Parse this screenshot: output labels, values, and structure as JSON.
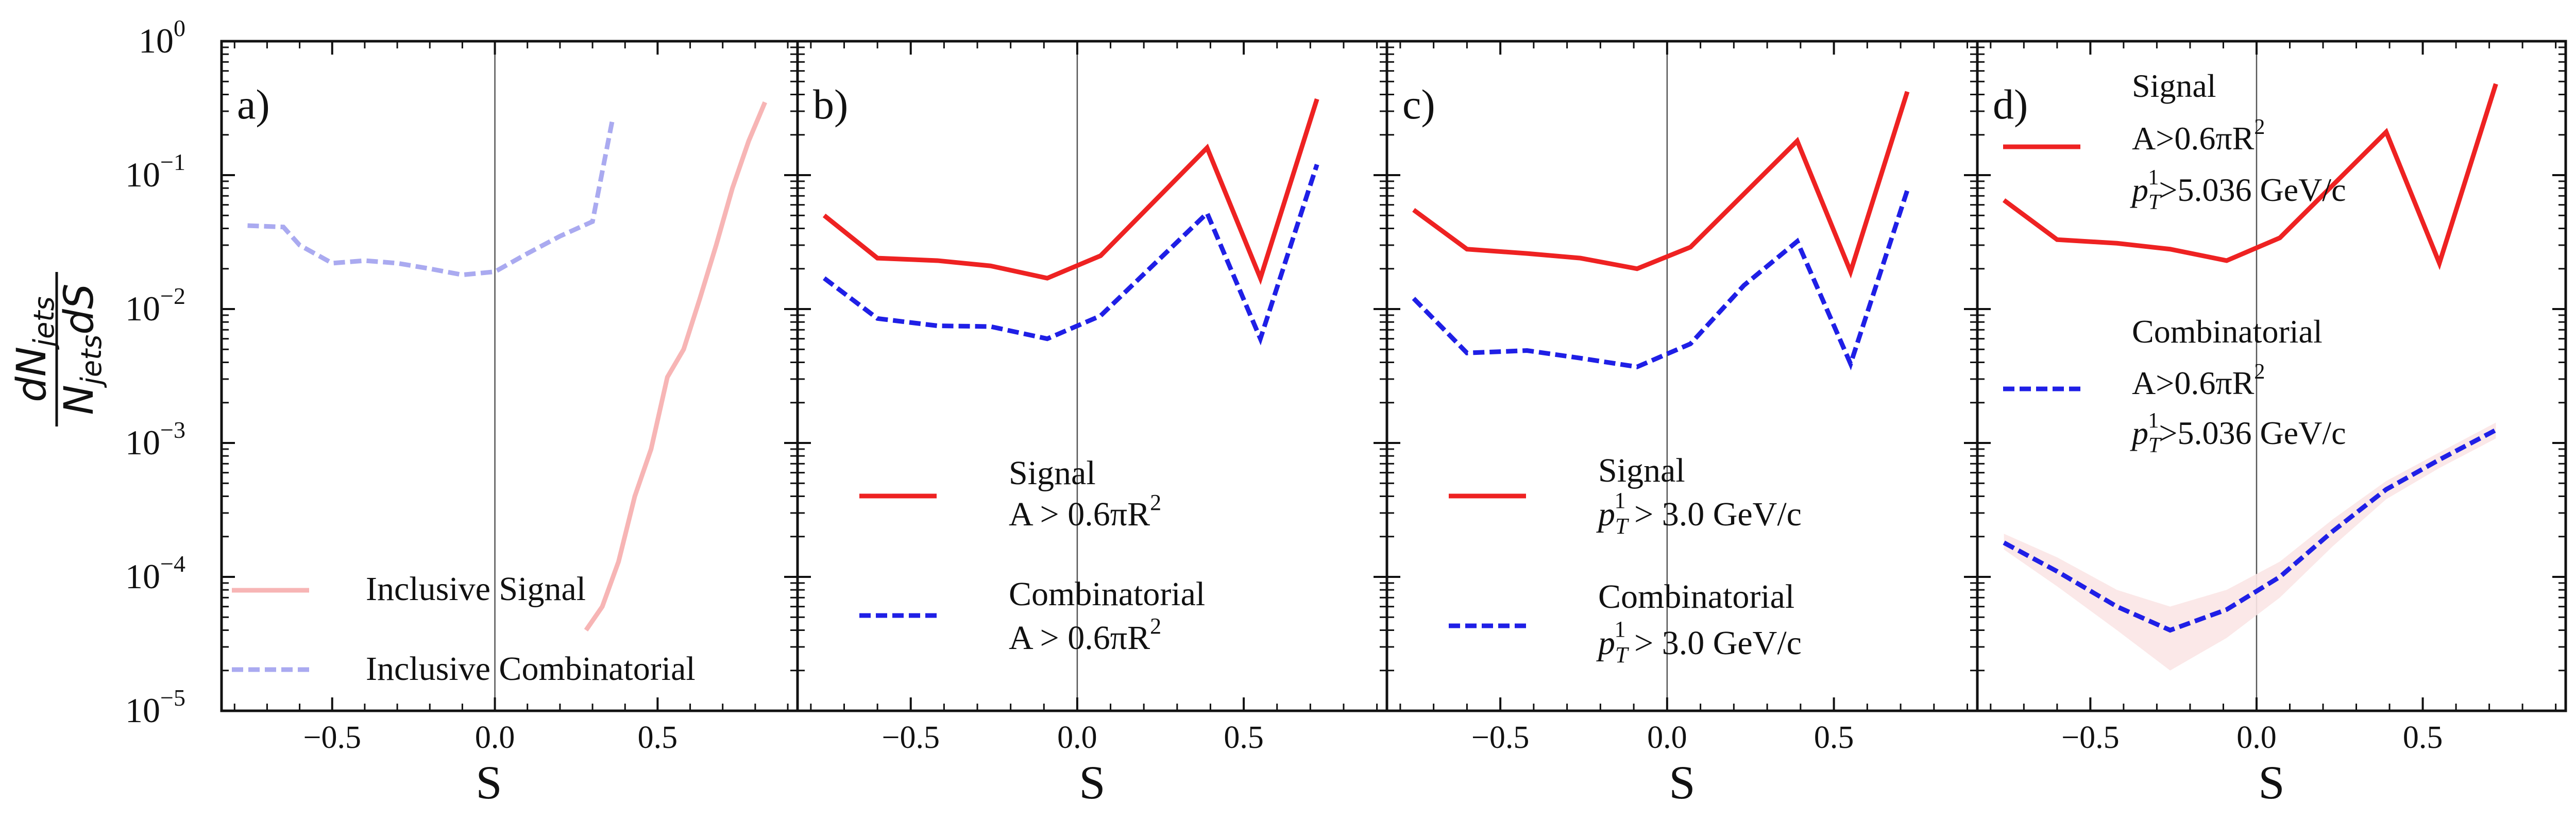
{
  "figure": {
    "ylabel_num": "dN",
    "ylabel_num_sub": "jets",
    "ylabel_den": "N",
    "ylabel_den_sub": "jets",
    "ylabel_den_tail": "dS",
    "y_ticks": [
      {
        "exp": 0,
        "label": "10",
        "sup": "0"
      },
      {
        "exp": -1,
        "label": "10",
        "sup": "−1"
      },
      {
        "exp": -2,
        "label": "10",
        "sup": "−2"
      },
      {
        "exp": -3,
        "label": "10",
        "sup": "−3"
      },
      {
        "exp": -4,
        "label": "10",
        "sup": "−4"
      },
      {
        "exp": -5,
        "label": "10",
        "sup": "−5"
      }
    ],
    "x_ticks": [
      {
        "value": -0.5,
        "label": "−0.5"
      },
      {
        "value": 0.0,
        "label": "0.0"
      },
      {
        "value": 0.5,
        "label": "0.5"
      }
    ]
  },
  "chart_data": [
    {
      "type": "line",
      "panel_label": "a)",
      "xlabel": "S",
      "ylabel": "dN_jets / (N_jets dS)",
      "yscale": "log",
      "xlim": [
        -0.84,
        0.93
      ],
      "ylim": [
        1e-05,
        1
      ],
      "series": [
        {
          "name": "Inclusive Signal",
          "color": "#f7b5b5",
          "style": "solid",
          "x": [
            0.28,
            0.33,
            0.38,
            0.43,
            0.48,
            0.53,
            0.58,
            0.63,
            0.68,
            0.73,
            0.78,
            0.83
          ],
          "y": [
            4e-05,
            6e-05,
            0.00013,
            0.0004,
            0.0009,
            0.0031,
            0.005,
            0.012,
            0.03,
            0.08,
            0.18,
            0.35
          ]
        },
        {
          "name": "Inclusive Combinatorial",
          "color": "#aaaaf0",
          "style": "dashed",
          "x": [
            -0.76,
            -0.65,
            -0.6,
            -0.5,
            -0.4,
            -0.3,
            -0.2,
            -0.1,
            0.0,
            0.1,
            0.2,
            0.3,
            0.36
          ],
          "y": [
            0.042,
            0.041,
            0.03,
            0.022,
            0.023,
            0.022,
            0.02,
            0.018,
            0.019,
            0.026,
            0.035,
            0.045,
            0.25
          ]
        }
      ]
    },
    {
      "type": "line",
      "panel_label": "b)",
      "xlabel": "S",
      "yscale": "log",
      "xlim": [
        -0.84,
        0.93
      ],
      "ylim": [
        1e-05,
        1
      ],
      "series": [
        {
          "name": "Signal",
          "legend_line2": "A > 0.6πR",
          "legend_sup": "2",
          "color": "#ee2222",
          "style": "solid",
          "x": [
            -0.76,
            -0.6,
            -0.42,
            -0.26,
            -0.09,
            0.07,
            0.39,
            0.55,
            0.72
          ],
          "y": [
            0.05,
            0.024,
            0.023,
            0.021,
            0.017,
            0.025,
            0.16,
            0.017,
            0.37
          ]
        },
        {
          "name": "Combinatorial",
          "legend_line2": "A > 0.6πR",
          "legend_sup": "2",
          "color": "#1f1fe6",
          "style": "dashed",
          "x": [
            -0.76,
            -0.6,
            -0.42,
            -0.26,
            -0.09,
            0.07,
            0.39,
            0.55,
            0.72
          ],
          "y": [
            0.017,
            0.0085,
            0.0075,
            0.0074,
            0.006,
            0.0089,
            0.052,
            0.006,
            0.12
          ]
        }
      ]
    },
    {
      "type": "line",
      "panel_label": "c)",
      "xlabel": "S",
      "yscale": "log",
      "xlim": [
        -0.84,
        0.93
      ],
      "ylim": [
        1e-05,
        1
      ],
      "series": [
        {
          "name": "Signal",
          "legend_line2": "> 3.0 GeV/c",
          "color": "#ee2222",
          "style": "solid",
          "x": [
            -0.76,
            -0.6,
            -0.42,
            -0.26,
            -0.09,
            0.07,
            0.39,
            0.55,
            0.72
          ],
          "y": [
            0.055,
            0.028,
            0.026,
            0.024,
            0.02,
            0.029,
            0.18,
            0.019,
            0.42
          ]
        },
        {
          "name": "Combinatorial",
          "legend_line2": "> 3.0 GeV/c",
          "color": "#1f1fe6",
          "style": "dashed",
          "x": [
            -0.76,
            -0.6,
            -0.42,
            -0.26,
            -0.09,
            0.07,
            0.23,
            0.39,
            0.55,
            0.72
          ],
          "y": [
            0.012,
            0.0047,
            0.0049,
            0.0043,
            0.0037,
            0.0055,
            0.015,
            0.032,
            0.0039,
            0.077
          ]
        }
      ]
    },
    {
      "type": "line",
      "panel_label": "d)",
      "xlabel": "S",
      "yscale": "log",
      "xlim": [
        -0.84,
        0.93
      ],
      "ylim": [
        1e-05,
        1
      ],
      "series": [
        {
          "name": "Signal",
          "legend_line2": "A>0.6πR",
          "legend_sup2": "2",
          "legend_line3": ">5.036 GeV/c",
          "color": "#ee2222",
          "style": "solid",
          "x": [
            -0.76,
            -0.6,
            -0.42,
            -0.26,
            -0.09,
            0.07,
            0.39,
            0.55,
            0.72
          ],
          "y": [
            0.065,
            0.033,
            0.031,
            0.028,
            0.023,
            0.034,
            0.21,
            0.022,
            0.48
          ]
        },
        {
          "name": "Combinatorial",
          "legend_line2": "A>0.6πR",
          "legend_sup2": "2",
          "legend_line3": ">5.036 GeV/c",
          "color": "#1f1fe6",
          "style": "dashed",
          "x": [
            -0.76,
            -0.6,
            -0.42,
            -0.26,
            -0.09,
            0.07,
            0.23,
            0.39,
            0.55,
            0.72
          ],
          "y": [
            0.00018,
            0.00011,
            6e-05,
            4e-05,
            5.7e-05,
            0.0001,
            0.00022,
            0.00045,
            0.00075,
            0.00125
          ],
          "band_lo": [
            0.00016,
            8.5e-05,
            4e-05,
            2e-05,
            3.5e-05,
            7e-05,
            0.00017,
            0.00038,
            0.00065,
            0.00108
          ],
          "band_hi": [
            0.00021,
            0.00014,
            8e-05,
            6e-05,
            8e-05,
            0.00013,
            0.00027,
            0.00052,
            0.00085,
            0.00142
          ]
        }
      ]
    }
  ]
}
